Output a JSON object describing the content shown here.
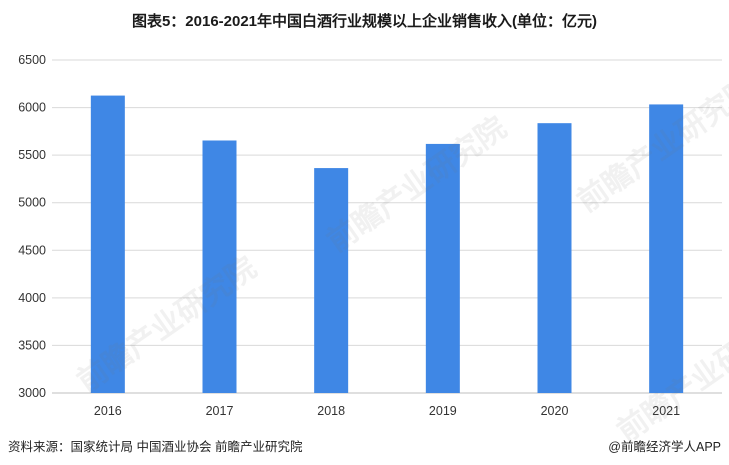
{
  "title": "图表5：2016-2021年中国白酒行业规模以上企业销售收入(单位：亿元)",
  "source": "资料来源：国家统计局 中国酒业协会 前瞻产业研究院",
  "credit": "@前瞻经济学人APP",
  "watermark": "前瞻产业研究院",
  "colors": {
    "bar": "#3f87e5",
    "grid": "#d9d9d9",
    "axis": "#bfbfbf",
    "text": "#333333"
  },
  "chart_data": {
    "type": "bar",
    "title": "图表5：2016-2021年中国白酒行业规模以上企业销售收入(单位：亿元)",
    "categories": [
      "2016",
      "2017",
      "2018",
      "2019",
      "2020",
      "2021"
    ],
    "values": [
      6126,
      5654,
      5364,
      5618,
      5836,
      6033
    ],
    "ylim": [
      3000,
      6500
    ],
    "yticks": [
      3000,
      3500,
      4000,
      4500,
      5000,
      5500,
      6000,
      6500
    ],
    "grid": true,
    "legend": "none"
  }
}
